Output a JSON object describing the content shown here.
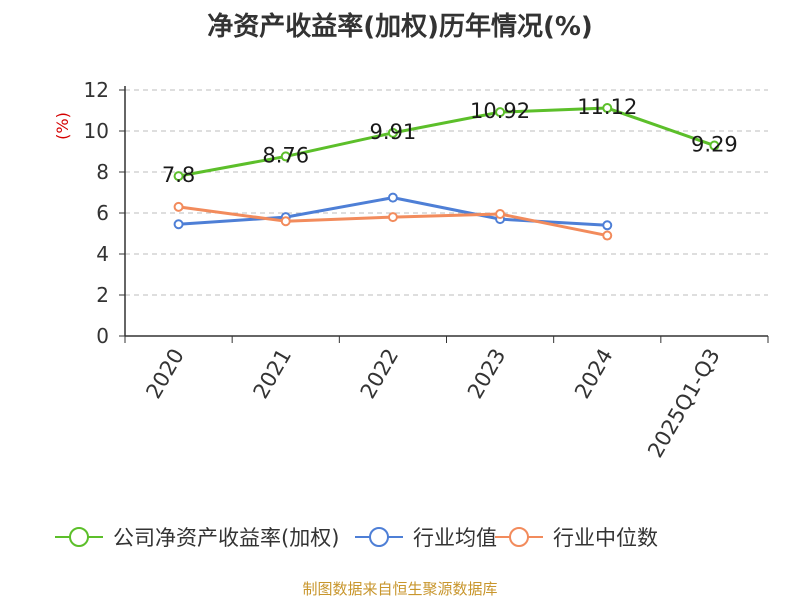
{
  "chart_data": {
    "type": "line",
    "title": "净资产收益率(加权)历年情况(%)",
    "ylabel": "(%)",
    "xlabel": "",
    "ylim": [
      0,
      12
    ],
    "yticks": [
      0,
      2,
      4,
      6,
      8,
      10,
      12
    ],
    "grid": true,
    "legend_position": "bottom",
    "categories": [
      "2020",
      "2021",
      "2022",
      "2023",
      "2024",
      "2025Q1-Q3"
    ],
    "series": [
      {
        "name": "公司净资产收益率(加权)",
        "color": "#5cbf2a",
        "values": [
          7.8,
          8.76,
          9.91,
          10.92,
          11.12,
          9.29
        ],
        "labels": [
          "7.8",
          "8.76",
          "9.91",
          "10.92",
          "11.12",
          "9.29"
        ],
        "show_labels": true
      },
      {
        "name": "行业均值",
        "color": "#4e7fd6",
        "values": [
          5.45,
          5.8,
          6.75,
          5.7,
          5.4,
          null
        ],
        "show_labels": false
      },
      {
        "name": "行业中位数",
        "color": "#f28b5c",
        "values": [
          6.3,
          5.6,
          5.8,
          5.95,
          4.9,
          null
        ],
        "show_labels": false
      }
    ]
  },
  "source_text": "制图数据来自恒生聚源数据库"
}
